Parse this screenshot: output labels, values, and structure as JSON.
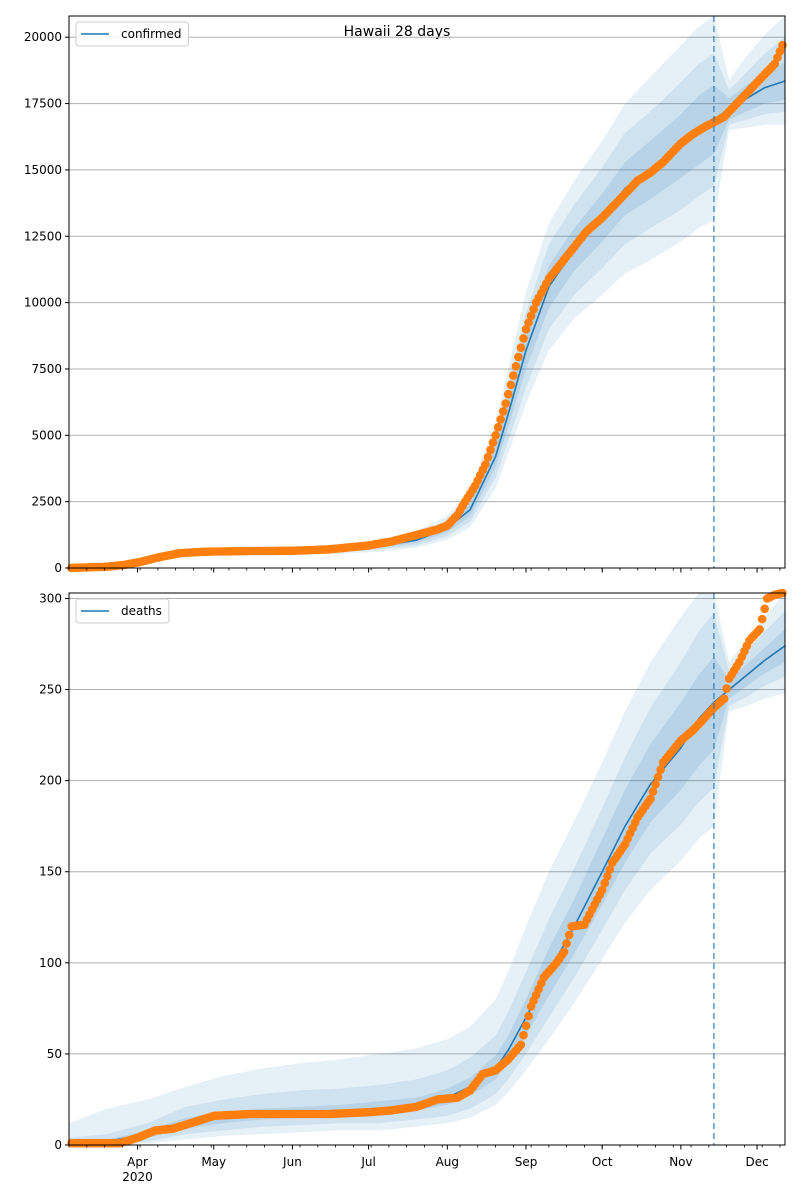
{
  "figure": {
    "title": "Hawaii 28 days"
  },
  "colors": {
    "model_line": "#1f77b4",
    "band": "#1f77b4",
    "observed": "#ff7f0e",
    "grid": "#b0b0b0",
    "forecast_marker": "#1f77b4"
  },
  "chart_data": [
    {
      "type": "line",
      "title": "Hawaii 28 days",
      "legend": {
        "label": "confirmed",
        "placement": "top-left"
      },
      "x_range": [
        "2020-03-05",
        "2020-12-12"
      ],
      "ylim": [
        0,
        20800
      ],
      "yticks": [
        0,
        2500,
        5000,
        7500,
        10000,
        12500,
        15000,
        17500,
        20000
      ],
      "grid": "y-major",
      "forecast_start": "2020-11-14",
      "model": {
        "x": [
          "2020-03-05",
          "2020-03-20",
          "2020-04-05",
          "2020-04-20",
          "2020-05-05",
          "2020-05-20",
          "2020-06-05",
          "2020-06-20",
          "2020-07-05",
          "2020-07-20",
          "2020-08-01",
          "2020-08-10",
          "2020-08-20",
          "2020-08-25",
          "2020-09-01",
          "2020-09-10",
          "2020-09-20",
          "2020-10-01",
          "2020-10-10",
          "2020-10-20",
          "2020-11-01",
          "2020-11-08",
          "2020-11-14",
          "2020-11-20",
          "2020-11-27",
          "2020-12-04",
          "2020-12-12"
        ],
        "median": [
          5,
          20,
          300,
          540,
          610,
          630,
          660,
          700,
          820,
          1050,
          1500,
          2200,
          4200,
          5800,
          8200,
          10600,
          12000,
          13200,
          14300,
          15000,
          15900,
          16500,
          16900,
          17300,
          17700,
          18100,
          18350
        ],
        "band50": [
          [
            5,
            5
          ],
          [
            18,
            22
          ],
          [
            280,
            320
          ],
          [
            510,
            570
          ],
          [
            580,
            640
          ],
          [
            600,
            660
          ],
          [
            620,
            700
          ],
          [
            660,
            740
          ],
          [
            760,
            880
          ],
          [
            950,
            1150
          ],
          [
            1350,
            1650
          ],
          [
            1950,
            2450
          ],
          [
            3800,
            4600
          ],
          [
            5300,
            6300
          ],
          [
            7500,
            8900
          ],
          [
            9800,
            11400
          ],
          [
            11200,
            12800
          ],
          [
            12300,
            14100
          ],
          [
            13300,
            15300
          ],
          [
            13900,
            16100
          ],
          [
            14700,
            17100
          ],
          [
            15200,
            17800
          ],
          [
            15600,
            18200
          ],
          [
            16900,
            17700
          ],
          [
            17200,
            18200
          ],
          [
            17500,
            18700
          ],
          [
            17650,
            19050
          ]
        ],
        "band80": [
          [
            4,
            6
          ],
          [
            15,
            26
          ],
          [
            250,
            360
          ],
          [
            470,
            620
          ],
          [
            540,
            690
          ],
          [
            560,
            710
          ],
          [
            570,
            760
          ],
          [
            600,
            810
          ],
          [
            690,
            960
          ],
          [
            860,
            1250
          ],
          [
            1200,
            1800
          ],
          [
            1750,
            2700
          ],
          [
            3400,
            5000
          ],
          [
            4800,
            6900
          ],
          [
            6800,
            9600
          ],
          [
            9000,
            12200
          ],
          [
            10300,
            13700
          ],
          [
            11300,
            15100
          ],
          [
            12200,
            16400
          ],
          [
            12800,
            17200
          ],
          [
            13500,
            18300
          ],
          [
            14000,
            19000
          ],
          [
            14400,
            19400
          ],
          [
            16700,
            18000
          ],
          [
            16900,
            18700
          ],
          [
            17100,
            19400
          ],
          [
            17200,
            20000
          ]
        ],
        "band95": [
          [
            3,
            8
          ],
          [
            10,
            32
          ],
          [
            220,
            400
          ],
          [
            430,
            680
          ],
          [
            500,
            740
          ],
          [
            520,
            770
          ],
          [
            520,
            830
          ],
          [
            540,
            890
          ],
          [
            610,
            1050
          ],
          [
            770,
            1380
          ],
          [
            1060,
            1980
          ],
          [
            1540,
            2950
          ],
          [
            3000,
            5500
          ],
          [
            4300,
            7500
          ],
          [
            6200,
            10400
          ],
          [
            8200,
            13000
          ],
          [
            9400,
            14600
          ],
          [
            10300,
            16100
          ],
          [
            11100,
            17500
          ],
          [
            11600,
            18500
          ],
          [
            12300,
            19700
          ],
          [
            12800,
            20400
          ],
          [
            13100,
            20800
          ],
          [
            16500,
            18400
          ],
          [
            16600,
            19300
          ],
          [
            16700,
            20100
          ],
          [
            16700,
            20800
          ]
        ]
      },
      "observed": {
        "x": [
          "2020-03-06",
          "2020-03-13",
          "2020-03-20",
          "2020-03-27",
          "2020-04-03",
          "2020-04-10",
          "2020-04-17",
          "2020-04-24",
          "2020-05-01",
          "2020-05-15",
          "2020-06-01",
          "2020-06-15",
          "2020-07-01",
          "2020-07-10",
          "2020-07-20",
          "2020-07-28",
          "2020-08-01",
          "2020-08-05",
          "2020-08-08",
          "2020-08-12",
          "2020-08-16",
          "2020-08-20",
          "2020-08-24",
          "2020-08-28",
          "2020-09-01",
          "2020-09-05",
          "2020-09-10",
          "2020-09-15",
          "2020-09-20",
          "2020-09-25",
          "2020-10-01",
          "2020-10-05",
          "2020-10-10",
          "2020-10-15",
          "2020-10-20",
          "2020-10-25",
          "2020-11-01",
          "2020-11-05",
          "2020-11-10",
          "2020-11-14",
          "2020-11-18",
          "2020-11-22",
          "2020-11-26",
          "2020-11-30",
          "2020-12-04",
          "2020-12-08",
          "2020-12-11"
        ],
        "y": [
          5,
          25,
          50,
          120,
          250,
          420,
          550,
          600,
          620,
          640,
          650,
          700,
          850,
          1000,
          1250,
          1450,
          1600,
          2000,
          2500,
          3100,
          3900,
          5000,
          6200,
          7600,
          9000,
          10000,
          10900,
          11500,
          12100,
          12700,
          13200,
          13600,
          14100,
          14600,
          14900,
          15300,
          16000,
          16300,
          16600,
          16800,
          17000,
          17400,
          17800,
          18200,
          18600,
          19000,
          19700
        ]
      }
    },
    {
      "type": "line",
      "legend": {
        "label": "deaths",
        "placement": "top-left"
      },
      "x_range": [
        "2020-03-05",
        "2020-12-12"
      ],
      "ylim": [
        0,
        303
      ],
      "yticks": [
        0,
        50,
        100,
        150,
        200,
        250,
        300
      ],
      "grid": "y-major",
      "forecast_start": "2020-11-14",
      "xticks": [
        {
          "date": "2020-04-01",
          "label": "Apr",
          "sublabel": "2020"
        },
        {
          "date": "2020-05-01",
          "label": "May"
        },
        {
          "date": "2020-06-01",
          "label": "Jun"
        },
        {
          "date": "2020-07-01",
          "label": "Jul"
        },
        {
          "date": "2020-08-01",
          "label": "Aug"
        },
        {
          "date": "2020-09-01",
          "label": "Sep"
        },
        {
          "date": "2020-10-01",
          "label": "Oct"
        },
        {
          "date": "2020-11-01",
          "label": "Nov"
        },
        {
          "date": "2020-12-01",
          "label": "Dec"
        }
      ],
      "model": {
        "x": [
          "2020-03-05",
          "2020-03-20",
          "2020-04-05",
          "2020-04-20",
          "2020-05-05",
          "2020-05-20",
          "2020-06-05",
          "2020-06-20",
          "2020-07-05",
          "2020-07-20",
          "2020-08-01",
          "2020-08-10",
          "2020-08-20",
          "2020-08-25",
          "2020-09-01",
          "2020-09-10",
          "2020-09-20",
          "2020-10-01",
          "2020-10-10",
          "2020-10-20",
          "2020-11-01",
          "2020-11-08",
          "2020-11-14",
          "2020-11-20",
          "2020-11-27",
          "2020-12-04",
          "2020-12-12"
        ],
        "median": [
          1,
          2,
          6,
          12,
          15,
          17,
          18,
          19,
          20,
          22,
          26,
          32,
          42,
          52,
          70,
          95,
          120,
          150,
          175,
          198,
          218,
          234,
          243,
          250,
          258,
          266,
          274
        ],
        "band50": [
          [
            1,
            2
          ],
          [
            1,
            3
          ],
          [
            4,
            8
          ],
          [
            9,
            15
          ],
          [
            12,
            18
          ],
          [
            14,
            20
          ],
          [
            15,
            21
          ],
          [
            16,
            22
          ],
          [
            17,
            24
          ],
          [
            19,
            26
          ],
          [
            22,
            31
          ],
          [
            27,
            37
          ],
          [
            36,
            49
          ],
          [
            45,
            60
          ],
          [
            60,
            80
          ],
          [
            82,
            108
          ],
          [
            105,
            135
          ],
          [
            132,
            168
          ],
          [
            155,
            195
          ],
          [
            177,
            220
          ],
          [
            195,
            243
          ],
          [
            208,
            258
          ],
          [
            217,
            268
          ],
          [
            245,
            255
          ],
          [
            252,
            264
          ],
          [
            259,
            273
          ],
          [
            265,
            283
          ]
        ],
        "band80": [
          [
            0,
            4
          ],
          [
            0,
            6
          ],
          [
            2,
            12
          ],
          [
            6,
            21
          ],
          [
            8,
            25
          ],
          [
            10,
            28
          ],
          [
            11,
            30
          ],
          [
            12,
            31
          ],
          [
            12,
            33
          ],
          [
            14,
            36
          ],
          [
            16,
            41
          ],
          [
            20,
            48
          ],
          [
            28,
            60
          ],
          [
            36,
            73
          ],
          [
            50,
            95
          ],
          [
            70,
            124
          ],
          [
            92,
            152
          ],
          [
            118,
            185
          ],
          [
            140,
            213
          ],
          [
            160,
            240
          ],
          [
            176,
            265
          ],
          [
            188,
            282
          ],
          [
            196,
            292
          ],
          [
            241,
            260
          ],
          [
            246,
            271
          ],
          [
            252,
            282
          ],
          [
            257,
            293
          ]
        ],
        "band95": [
          [
            0,
            12
          ],
          [
            0,
            20
          ],
          [
            1,
            25
          ],
          [
            3,
            32
          ],
          [
            5,
            38
          ],
          [
            6,
            42
          ],
          [
            7,
            45
          ],
          [
            8,
            47
          ],
          [
            8,
            50
          ],
          [
            10,
            53
          ],
          [
            12,
            58
          ],
          [
            15,
            65
          ],
          [
            22,
            80
          ],
          [
            29,
            95
          ],
          [
            41,
            120
          ],
          [
            58,
            150
          ],
          [
            78,
            178
          ],
          [
            102,
            210
          ],
          [
            122,
            238
          ],
          [
            140,
            265
          ],
          [
            156,
            290
          ],
          [
            168,
            303
          ],
          [
            175,
            303
          ],
          [
            238,
            265
          ],
          [
            241,
            278
          ],
          [
            245,
            290
          ],
          [
            248,
            303
          ]
        ]
      },
      "observed": {
        "x": [
          "2020-03-06",
          "2020-03-15",
          "2020-03-25",
          "2020-04-01",
          "2020-04-08",
          "2020-04-15",
          "2020-04-22",
          "2020-05-01",
          "2020-05-15",
          "2020-06-01",
          "2020-06-15",
          "2020-07-01",
          "2020-07-10",
          "2020-07-20",
          "2020-07-28",
          "2020-08-05",
          "2020-08-10",
          "2020-08-15",
          "2020-08-20",
          "2020-08-25",
          "2020-08-30",
          "2020-09-03",
          "2020-09-08",
          "2020-09-13",
          "2020-09-16",
          "2020-09-19",
          "2020-09-24",
          "2020-09-28",
          "2020-10-01",
          "2020-10-05",
          "2020-10-10",
          "2020-10-15",
          "2020-10-20",
          "2020-10-25",
          "2020-11-01",
          "2020-11-06",
          "2020-11-10",
          "2020-11-14",
          "2020-11-18",
          "2020-11-20",
          "2020-11-24",
          "2020-11-28",
          "2020-12-02",
          "2020-12-05",
          "2020-12-08",
          "2020-12-11"
        ],
        "y": [
          1,
          1,
          1,
          4,
          8,
          9,
          12,
          16,
          17,
          17,
          17,
          18,
          19,
          21,
          25,
          26,
          30,
          39,
          41,
          47,
          55,
          76,
          92,
          100,
          106,
          120,
          121,
          132,
          140,
          155,
          165,
          180,
          190,
          210,
          222,
          228,
          234,
          240,
          245,
          256,
          265,
          277,
          283,
          300,
          302,
          303
        ]
      }
    }
  ]
}
